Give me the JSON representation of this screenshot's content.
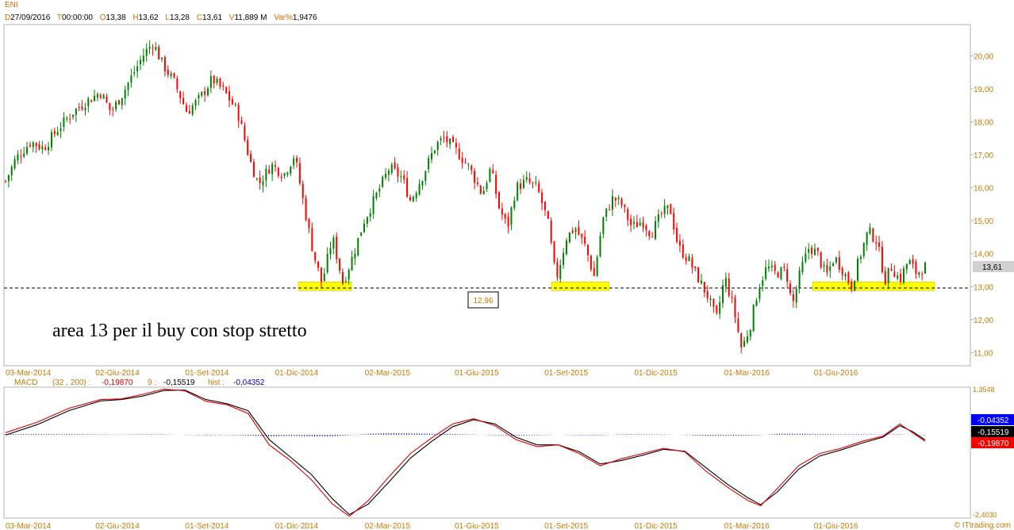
{
  "header": {
    "symbol": "ENI",
    "date_key": "D",
    "date": "27/09/2016",
    "time_key": "T",
    "time": "00:00:00",
    "open_key": "O",
    "open": "13,38",
    "high_key": "H",
    "high": "13,62",
    "low_key": "L",
    "low": "13,28",
    "close_key": "C",
    "close": "13,61",
    "vol_key": "V",
    "vol": "11,889 M",
    "var_key": "Var%",
    "var": "1,9476"
  },
  "chart_data": [
    {
      "type": "candlestick",
      "title": "ENI",
      "y_ticks": [
        "11,00",
        "12,00",
        "13,00",
        "14,00",
        "15,00",
        "16,00",
        "17,00",
        "18,00",
        "19,00",
        "20,00"
      ],
      "ylim": [
        10.6,
        20.95
      ],
      "x_ticks": [
        "03-Mar-2014",
        "02-Giu-2014",
        "01-Set-2014",
        "01-Dic-2014",
        "02-Mar-2015",
        "01-Giu-2015",
        "01-Set-2015",
        "01-Dic-2015",
        "01-Mar-2016",
        "01-Giu-2016"
      ],
      "last_price_label": "13,61",
      "last_price": 13.61,
      "support_level": 12.96,
      "support_label": "12,96",
      "annotation": "area 13 per il buy con stop stretto",
      "highlight_zones": [
        {
          "from": "Dic-2014",
          "to": "Gen-2015",
          "level": 13.0
        },
        {
          "from": "Ago-2015",
          "to": "Set-2015",
          "level": 13.0
        },
        {
          "from": "Mag-2016",
          "to": "Set-2016",
          "level": 13.0
        }
      ],
      "close_path": [
        {
          "t": 0,
          "v": 16.2
        },
        {
          "t": 5,
          "v": 16.9
        },
        {
          "t": 12,
          "v": 17.4
        },
        {
          "t": 18,
          "v": 17.2
        },
        {
          "t": 25,
          "v": 17.8
        },
        {
          "t": 32,
          "v": 18.3
        },
        {
          "t": 38,
          "v": 18.6
        },
        {
          "t": 45,
          "v": 18.9
        },
        {
          "t": 50,
          "v": 18.3
        },
        {
          "t": 55,
          "v": 18.8
        },
        {
          "t": 60,
          "v": 19.4
        },
        {
          "t": 66,
          "v": 20.1
        },
        {
          "t": 70,
          "v": 20.4
        },
        {
          "t": 74,
          "v": 19.8
        },
        {
          "t": 80,
          "v": 19.2
        },
        {
          "t": 86,
          "v": 18.3
        },
        {
          "t": 92,
          "v": 18.7
        },
        {
          "t": 98,
          "v": 19.3
        },
        {
          "t": 104,
          "v": 18.9
        },
        {
          "t": 110,
          "v": 18.3
        },
        {
          "t": 116,
          "v": 16.8
        },
        {
          "t": 120,
          "v": 16.1
        },
        {
          "t": 126,
          "v": 16.7
        },
        {
          "t": 132,
          "v": 16.4
        },
        {
          "t": 137,
          "v": 17.0
        },
        {
          "t": 142,
          "v": 15.3
        },
        {
          "t": 146,
          "v": 14.0
        },
        {
          "t": 150,
          "v": 13.1
        },
        {
          "t": 155,
          "v": 14.5
        },
        {
          "t": 160,
          "v": 13.1
        },
        {
          "t": 165,
          "v": 14.0
        },
        {
          "t": 170,
          "v": 15.0
        },
        {
          "t": 176,
          "v": 15.8
        },
        {
          "t": 182,
          "v": 16.6
        },
        {
          "t": 188,
          "v": 16.3
        },
        {
          "t": 192,
          "v": 15.6
        },
        {
          "t": 198,
          "v": 16.4
        },
        {
          "t": 204,
          "v": 17.3
        },
        {
          "t": 208,
          "v": 17.5
        },
        {
          "t": 214,
          "v": 17.1
        },
        {
          "t": 220,
          "v": 16.6
        },
        {
          "t": 226,
          "v": 15.8
        },
        {
          "t": 230,
          "v": 16.6
        },
        {
          "t": 234,
          "v": 15.4
        },
        {
          "t": 238,
          "v": 14.8
        },
        {
          "t": 242,
          "v": 16.0
        },
        {
          "t": 247,
          "v": 16.2
        },
        {
          "t": 252,
          "v": 16.0
        },
        {
          "t": 257,
          "v": 15.0
        },
        {
          "t": 261,
          "v": 13.2
        },
        {
          "t": 266,
          "v": 14.5
        },
        {
          "t": 270,
          "v": 14.8
        },
        {
          "t": 275,
          "v": 14.2
        },
        {
          "t": 279,
          "v": 13.3
        },
        {
          "t": 283,
          "v": 15.0
        },
        {
          "t": 288,
          "v": 15.7
        },
        {
          "t": 292,
          "v": 15.5
        },
        {
          "t": 297,
          "v": 14.8
        },
        {
          "t": 302,
          "v": 15.0
        },
        {
          "t": 306,
          "v": 14.6
        },
        {
          "t": 311,
          "v": 15.2
        },
        {
          "t": 315,
          "v": 15.4
        },
        {
          "t": 319,
          "v": 14.2
        },
        {
          "t": 324,
          "v": 13.8
        },
        {
          "t": 328,
          "v": 13.3
        },
        {
          "t": 333,
          "v": 12.7
        },
        {
          "t": 337,
          "v": 12.0
        },
        {
          "t": 341,
          "v": 13.3
        },
        {
          "t": 345,
          "v": 12.4
        },
        {
          "t": 349,
          "v": 11.1
        },
        {
          "t": 353,
          "v": 11.8
        },
        {
          "t": 357,
          "v": 13.0
        },
        {
          "t": 361,
          "v": 13.6
        },
        {
          "t": 365,
          "v": 13.4
        },
        {
          "t": 370,
          "v": 13.5
        },
        {
          "t": 373,
          "v": 12.4
        },
        {
          "t": 377,
          "v": 13.5
        },
        {
          "t": 381,
          "v": 14.2
        },
        {
          "t": 385,
          "v": 14.0
        },
        {
          "t": 389,
          "v": 13.3
        },
        {
          "t": 393,
          "v": 13.9
        },
        {
          "t": 397,
          "v": 13.5
        },
        {
          "t": 401,
          "v": 13.0
        },
        {
          "t": 405,
          "v": 13.9
        },
        {
          "t": 409,
          "v": 14.7
        },
        {
          "t": 413,
          "v": 14.4
        },
        {
          "t": 417,
          "v": 13.2
        },
        {
          "t": 420,
          "v": 13.6
        },
        {
          "t": 424,
          "v": 13.2
        },
        {
          "t": 428,
          "v": 13.8
        },
        {
          "t": 432,
          "v": 13.4
        },
        {
          "t": 436,
          "v": 13.61
        }
      ]
    },
    {
      "type": "line",
      "title": "MACD",
      "params": "(32 , 200) :",
      "macd_value": "-0,19870",
      "signal_key": "9 :",
      "signal_value": "-0,15519",
      "hist_key": "hist :",
      "hist_value": "-0,04352",
      "y_top_label": "1,3548",
      "y_bottom_label": "-2,4030",
      "ylim": [
        -2.403,
        1.3548
      ],
      "badges": [
        "-0,04352",
        "-0,15519",
        "-0,19870"
      ],
      "macd_path": [
        {
          "t": 0,
          "v": 0.05
        },
        {
          "t": 15,
          "v": 0.35
        },
        {
          "t": 30,
          "v": 0.75
        },
        {
          "t": 45,
          "v": 1.0
        },
        {
          "t": 55,
          "v": 1.02
        },
        {
          "t": 65,
          "v": 1.15
        },
        {
          "t": 75,
          "v": 1.3
        },
        {
          "t": 85,
          "v": 1.25
        },
        {
          "t": 95,
          "v": 0.95
        },
        {
          "t": 105,
          "v": 0.85
        },
        {
          "t": 115,
          "v": 0.6
        },
        {
          "t": 125,
          "v": -0.3
        },
        {
          "t": 135,
          "v": -0.75
        },
        {
          "t": 145,
          "v": -1.3
        },
        {
          "t": 155,
          "v": -2.0
        },
        {
          "t": 163,
          "v": -2.35
        },
        {
          "t": 172,
          "v": -1.9
        },
        {
          "t": 182,
          "v": -1.2
        },
        {
          "t": 192,
          "v": -0.55
        },
        {
          "t": 202,
          "v": -0.1
        },
        {
          "t": 212,
          "v": 0.3
        },
        {
          "t": 222,
          "v": 0.45
        },
        {
          "t": 232,
          "v": 0.25
        },
        {
          "t": 242,
          "v": -0.15
        },
        {
          "t": 252,
          "v": -0.35
        },
        {
          "t": 262,
          "v": -0.3
        },
        {
          "t": 272,
          "v": -0.55
        },
        {
          "t": 282,
          "v": -0.9
        },
        {
          "t": 292,
          "v": -0.7
        },
        {
          "t": 302,
          "v": -0.55
        },
        {
          "t": 312,
          "v": -0.4
        },
        {
          "t": 322,
          "v": -0.5
        },
        {
          "t": 332,
          "v": -1.05
        },
        {
          "t": 342,
          "v": -1.5
        },
        {
          "t": 352,
          "v": -1.9
        },
        {
          "t": 358,
          "v": -2.05
        },
        {
          "t": 366,
          "v": -1.55
        },
        {
          "t": 376,
          "v": -0.9
        },
        {
          "t": 386,
          "v": -0.55
        },
        {
          "t": 396,
          "v": -0.4
        },
        {
          "t": 406,
          "v": -0.2
        },
        {
          "t": 416,
          "v": -0.05
        },
        {
          "t": 424,
          "v": 0.3
        },
        {
          "t": 430,
          "v": 0.05
        },
        {
          "t": 436,
          "v": -0.2
        }
      ],
      "signal_path": [
        {
          "t": 0,
          "v": -0.02
        },
        {
          "t": 15,
          "v": 0.28
        },
        {
          "t": 30,
          "v": 0.68
        },
        {
          "t": 45,
          "v": 0.96
        },
        {
          "t": 55,
          "v": 1.0
        },
        {
          "t": 65,
          "v": 1.1
        },
        {
          "t": 75,
          "v": 1.26
        },
        {
          "t": 85,
          "v": 1.27
        },
        {
          "t": 95,
          "v": 1.0
        },
        {
          "t": 105,
          "v": 0.88
        },
        {
          "t": 115,
          "v": 0.68
        },
        {
          "t": 125,
          "v": -0.15
        },
        {
          "t": 135,
          "v": -0.65
        },
        {
          "t": 145,
          "v": -1.15
        },
        {
          "t": 155,
          "v": -1.85
        },
        {
          "t": 163,
          "v": -2.3
        },
        {
          "t": 172,
          "v": -2.0
        },
        {
          "t": 182,
          "v": -1.35
        },
        {
          "t": 192,
          "v": -0.68
        },
        {
          "t": 202,
          "v": -0.2
        },
        {
          "t": 212,
          "v": 0.22
        },
        {
          "t": 222,
          "v": 0.42
        },
        {
          "t": 232,
          "v": 0.3
        },
        {
          "t": 242,
          "v": -0.08
        },
        {
          "t": 252,
          "v": -0.3
        },
        {
          "t": 262,
          "v": -0.3
        },
        {
          "t": 272,
          "v": -0.5
        },
        {
          "t": 282,
          "v": -0.85
        },
        {
          "t": 292,
          "v": -0.75
        },
        {
          "t": 302,
          "v": -0.6
        },
        {
          "t": 312,
          "v": -0.43
        },
        {
          "t": 322,
          "v": -0.48
        },
        {
          "t": 332,
          "v": -0.95
        },
        {
          "t": 342,
          "v": -1.42
        },
        {
          "t": 352,
          "v": -1.82
        },
        {
          "t": 358,
          "v": -2.02
        },
        {
          "t": 366,
          "v": -1.65
        },
        {
          "t": 376,
          "v": -1.0
        },
        {
          "t": 386,
          "v": -0.62
        },
        {
          "t": 396,
          "v": -0.45
        },
        {
          "t": 406,
          "v": -0.25
        },
        {
          "t": 416,
          "v": -0.08
        },
        {
          "t": 424,
          "v": 0.25
        },
        {
          "t": 430,
          "v": 0.08
        },
        {
          "t": 436,
          "v": -0.16
        }
      ]
    }
  ],
  "watermark": "© ITtrading.com",
  "colors": {
    "up": "#008000",
    "down": "#ff0000",
    "highlight": "#ffff00",
    "macd": "#e00000",
    "signal": "#000000",
    "hist": "#0000c0",
    "badge_hist": "#0000ff",
    "badge_signal": "#000000",
    "badge_macd": "#ff0000",
    "axis_text": "#c47a00"
  }
}
